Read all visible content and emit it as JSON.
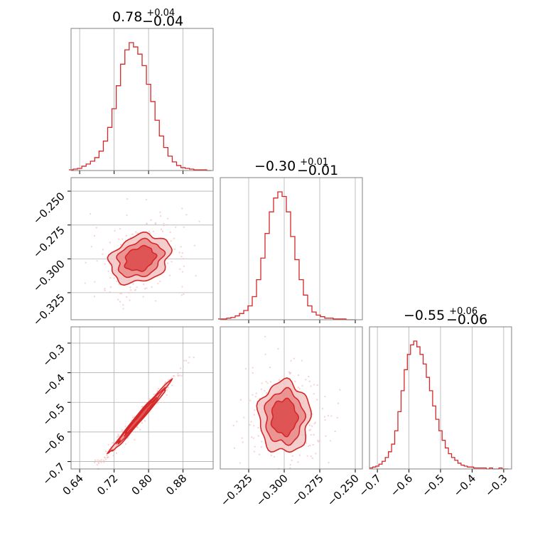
{
  "colors": {
    "accent": "#d62728",
    "fill_light": "#f2c4c4",
    "fill_mid": "#e88a8a",
    "fill_dark": "#dd4a4a"
  },
  "chart_data": [
    {
      "type": "histogram",
      "panel": "hist-param-1",
      "title": {
        "median": "0.78",
        "plus": "+0.04",
        "minus": "−0.04"
      },
      "x": [
        0.62,
        0.63,
        0.64,
        0.65,
        0.66,
        0.67,
        0.68,
        0.69,
        0.7,
        0.71,
        0.72,
        0.73,
        0.74,
        0.75,
        0.76,
        0.77,
        0.78,
        0.79,
        0.8,
        0.81,
        0.82,
        0.83,
        0.84,
        0.85,
        0.86,
        0.87,
        0.88,
        0.89,
        0.9,
        0.91,
        0.92,
        0.93,
        0.94
      ],
      "values": [
        1,
        2,
        3,
        6,
        9,
        13,
        18,
        27,
        41,
        60,
        86,
        118,
        148,
        168,
        178,
        172,
        162,
        146,
        120,
        96,
        70,
        48,
        32,
        20,
        12,
        7,
        4,
        3,
        2,
        1,
        1,
        1,
        0
      ],
      "xlim": [
        0.62,
        0.95
      ],
      "xticks": [
        "0.64",
        "0.72",
        "0.80",
        "0.88"
      ],
      "xtick_values": [
        0.64,
        0.72,
        0.8,
        0.88
      ]
    },
    {
      "type": "histogram",
      "panel": "hist-param-2",
      "title": {
        "median": "−0.30",
        "plus": "+0.01",
        "minus": "−0.01"
      },
      "x": [
        -0.345,
        -0.342,
        -0.339,
        -0.336,
        -0.333,
        -0.33,
        -0.327,
        -0.324,
        -0.321,
        -0.318,
        -0.315,
        -0.312,
        -0.309,
        -0.306,
        -0.303,
        -0.3,
        -0.297,
        -0.294,
        -0.291,
        -0.288,
        -0.285,
        -0.282,
        -0.279,
        -0.276,
        -0.273,
        -0.27,
        -0.267,
        -0.264,
        -0.261,
        -0.258,
        -0.255,
        -0.252
      ],
      "values": [
        1,
        1,
        2,
        3,
        5,
        8,
        12,
        18,
        30,
        52,
        80,
        112,
        140,
        158,
        166,
        160,
        140,
        108,
        78,
        52,
        32,
        18,
        10,
        6,
        4,
        2,
        2,
        1,
        1,
        1,
        0,
        0
      ],
      "xlim": [
        -0.345,
        -0.245
      ],
      "xticks": [
        "−0.325",
        "−0.300",
        "−0.275",
        "−0.250"
      ],
      "xtick_values": [
        -0.325,
        -0.3,
        -0.275,
        -0.25
      ]
    },
    {
      "type": "histogram",
      "panel": "hist-param-3",
      "title": {
        "median": "−0.55",
        "plus": "+0.06",
        "minus": "−0.06"
      },
      "x": [
        -0.72,
        -0.71,
        -0.7,
        -0.69,
        -0.68,
        -0.67,
        -0.66,
        -0.65,
        -0.64,
        -0.63,
        -0.62,
        -0.61,
        -0.6,
        -0.59,
        -0.58,
        -0.57,
        -0.56,
        -0.55,
        -0.54,
        -0.53,
        -0.52,
        -0.51,
        -0.5,
        -0.49,
        -0.48,
        -0.47,
        -0.46,
        -0.45,
        -0.44,
        -0.43,
        -0.42,
        -0.41,
        -0.4,
        -0.39,
        -0.38,
        -0.37,
        -0.36,
        -0.35,
        -0.34,
        -0.33,
        -0.32,
        -0.31,
        -0.3,
        -0.29
      ],
      "values": [
        1,
        2,
        3,
        5,
        8,
        12,
        18,
        26,
        40,
        60,
        82,
        104,
        120,
        130,
        134,
        128,
        120,
        110,
        96,
        82,
        66,
        52,
        40,
        30,
        22,
        16,
        12,
        9,
        6,
        4,
        3,
        2,
        2,
        1,
        1,
        1,
        1,
        0,
        1,
        0,
        0,
        1,
        0,
        0
      ],
      "xlim": [
        -0.725,
        -0.275
      ],
      "xticks": [
        "−0.7",
        "−0.6",
        "−0.5",
        "−0.4",
        "−0.3"
      ],
      "xtick_values": [
        -0.7,
        -0.6,
        -0.5,
        -0.4,
        -0.3
      ]
    },
    {
      "type": "contour",
      "panel": "2d-param-1-vs-param-2",
      "center": [
        0.78,
        -0.3
      ],
      "sigma": [
        0.035,
        0.009
      ],
      "correlation": 0.25,
      "xlim": [
        0.62,
        0.95
      ],
      "ylim": [
        -0.345,
        -0.24
      ],
      "yticks": [
        "−0.250",
        "−0.275",
        "−0.300",
        "−0.325"
      ],
      "ytick_values": [
        -0.25,
        -0.275,
        -0.3,
        -0.325
      ]
    },
    {
      "type": "contour",
      "panel": "2d-param-1-vs-param-3",
      "center": [
        0.78,
        -0.55
      ],
      "sigma": [
        0.035,
        0.06
      ],
      "correlation": 0.99,
      "xlim": [
        0.62,
        0.95
      ],
      "ylim": [
        -0.725,
        -0.245
      ],
      "xticks": [
        "0.64",
        "0.72",
        "0.80",
        "0.88"
      ],
      "xtick_values": [
        0.64,
        0.72,
        0.8,
        0.88
      ],
      "yticks": [
        "−0.3",
        "−0.4",
        "−0.5",
        "−0.6",
        "−0.7"
      ],
      "ytick_values": [
        -0.3,
        -0.4,
        -0.5,
        -0.6,
        -0.7
      ]
    },
    {
      "type": "contour",
      "panel": "2d-param-2-vs-param-3",
      "center": [
        -0.3,
        -0.55
      ],
      "sigma": [
        0.009,
        0.06
      ],
      "correlation": 0.0,
      "xlim": [
        -0.345,
        -0.245
      ],
      "ylim": [
        -0.725,
        -0.245
      ],
      "xticks": [
        "−0.325",
        "−0.300",
        "−0.275",
        "−0.250"
      ],
      "xtick_values": [
        -0.325,
        -0.3,
        -0.275,
        -0.25
      ]
    }
  ]
}
